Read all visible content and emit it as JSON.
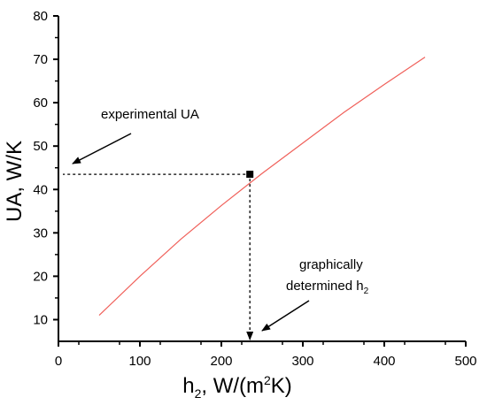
{
  "chart_data": {
    "type": "line",
    "xlabel": "h₂, W/(m²K)",
    "ylabel": "UA, W/K",
    "xlim": [
      0,
      500
    ],
    "ylim": [
      5,
      80
    ],
    "xticks": [
      0,
      100,
      200,
      300,
      400,
      500
    ],
    "yticks": [
      10,
      20,
      30,
      40,
      50,
      60,
      70,
      80
    ],
    "grid": false,
    "series": [
      {
        "color": "#f0605a",
        "x": [
          50,
          100,
          150,
          200,
          250,
          300,
          350,
          400,
          450
        ],
        "y": [
          11,
          20,
          28.5,
          36.3,
          43.7,
          50.7,
          57.7,
          64.2,
          70.5
        ]
      }
    ],
    "marker_point": {
      "x": 235,
      "y": 43.5,
      "color": "#000000"
    },
    "annotations": {
      "experimental": {
        "text": "experimental UA"
      },
      "graphical": {
        "line1": "graphically",
        "line2_main": "determined h",
        "line2_sub": "2"
      }
    }
  }
}
